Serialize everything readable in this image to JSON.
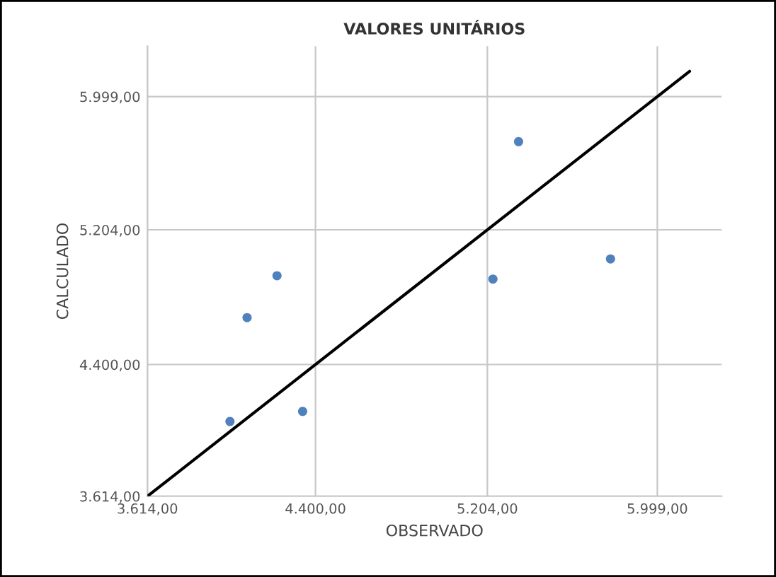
{
  "chart_data": {
    "type": "scatter",
    "title": "VALORES UNITÁRIOS",
    "xlabel": "OBSERVADO",
    "ylabel": "CALCULADO",
    "xlim": [
      3614,
      6300
    ],
    "ylim": [
      3614,
      6300
    ],
    "xticks": [
      {
        "value": 3614,
        "label": "3.614,00"
      },
      {
        "value": 4400,
        "label": "4.400,00"
      },
      {
        "value": 5204,
        "label": "5.204,00"
      },
      {
        "value": 5999,
        "label": "5.999,00"
      }
    ],
    "yticks": [
      {
        "value": 3614,
        "label": "3.614,00"
      },
      {
        "value": 4400,
        "label": "4.400,00"
      },
      {
        "value": 5204,
        "label": "5.204,00"
      },
      {
        "value": 5999,
        "label": "5.999,00"
      }
    ],
    "grid": true,
    "series": [
      {
        "color": "#4f81bd",
        "marker": "circle",
        "x": [
          4000,
          4080,
          4220,
          4340,
          5230,
          5350,
          5780
        ],
        "values": [
          4060,
          4680,
          4930,
          4120,
          4910,
          5730,
          5030
        ]
      },
      {
        "type": "line",
        "color": "#000000",
        "marker": "none",
        "x": [
          3614,
          6150
        ],
        "values": [
          3614,
          6150
        ]
      }
    ]
  }
}
